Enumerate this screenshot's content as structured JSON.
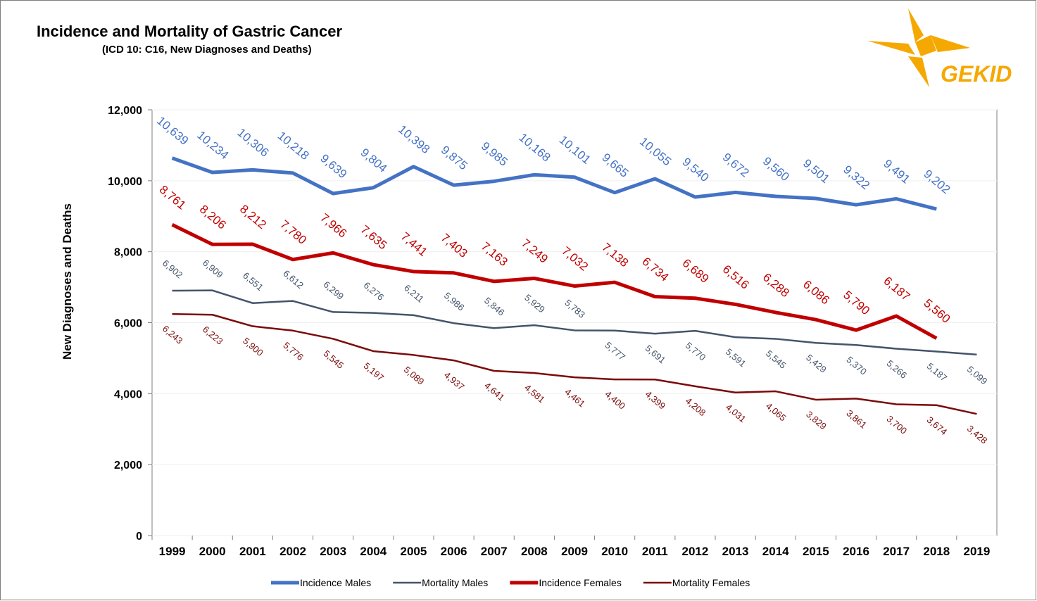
{
  "logo": "GEKID",
  "chart_data": {
    "type": "line",
    "title": "Incidence and Mortality of Gastric Cancer",
    "subtitle": "(ICD 10: C16, New Diagnoses and Deaths)",
    "y_label": "New Diagnoses and Deaths",
    "categories": [
      "1999",
      "2000",
      "2001",
      "2002",
      "2003",
      "2004",
      "2005",
      "2006",
      "2007",
      "2008",
      "2009",
      "2010",
      "2011",
      "2012",
      "2013",
      "2014",
      "2015",
      "2016",
      "2017",
      "2018",
      "2019"
    ],
    "ylim": [
      0,
      12000
    ],
    "yticks": [
      0,
      {
        "value": 2000,
        "label": "2,000"
      },
      {
        "value": 4000,
        "label": "4,000"
      },
      {
        "value": 6000,
        "label": "6,000"
      },
      {
        "value": 8000,
        "label": "8,000"
      },
      {
        "value": 10000,
        "label": "10,000"
      },
      {
        "value": 12000,
        "label": "12,000"
      }
    ],
    "grid": true,
    "legend": "bottom",
    "series": [
      {
        "name": "Incidence Males",
        "color": "#4472c4",
        "values": [
          10639,
          10234,
          10306,
          10218,
          9639,
          9804,
          10398,
          9875,
          9985,
          10168,
          10101,
          9665,
          10055,
          9540,
          9672,
          9560,
          9501,
          9322,
          9491,
          9202,
          null
        ],
        "value_labels": [
          "10,639",
          "10,234",
          "10,306",
          "10,218",
          "9,639",
          "9,804",
          "10,398",
          "9,875",
          "9,985",
          "10,168",
          "10,101",
          "9,665",
          "10,055",
          "9,540",
          "9,672",
          "9,560",
          "9,501",
          "9,322",
          "9,491",
          "9,202",
          null
        ]
      },
      {
        "name": "Mortality Males",
        "color": "#44546a",
        "values": [
          6902,
          6909,
          6551,
          6612,
          6299,
          6276,
          6211,
          5986,
          5846,
          5929,
          5783,
          5777,
          5691,
          5770,
          5591,
          5545,
          5429,
          5370,
          5266,
          5187,
          5099
        ],
        "value_labels": [
          "6,902",
          "6,909",
          "6,551",
          "6,612",
          "6,299",
          "6,276",
          "6,211",
          "5,986",
          "5,846",
          "5,929",
          "5,783",
          "5,777",
          "5,691",
          "5,770",
          "5,591",
          "5,545",
          "5,429",
          "5,370",
          "5,266",
          "5,187",
          "5,099"
        ]
      },
      {
        "name": "Incidence Females",
        "color": "#c00000",
        "values": [
          8761,
          8206,
          8212,
          7780,
          7966,
          7635,
          7441,
          7403,
          7163,
          7249,
          7032,
          7138,
          6734,
          6689,
          6516,
          6288,
          6086,
          5790,
          6187,
          5560,
          null
        ],
        "value_labels": [
          "8,761",
          "8,206",
          "8,212",
          "7,780",
          "7,966",
          "7,635",
          "7,441",
          "7,403",
          "7,163",
          "7,249",
          "7,032",
          "7,138",
          "6,734",
          "6,689",
          "6,516",
          "6,288",
          "6,086",
          "5,790",
          "6,187",
          "5,560",
          null
        ]
      },
      {
        "name": "Mortality Females",
        "color": "#7b0a0a",
        "values": [
          6243,
          6223,
          5900,
          5776,
          5545,
          5197,
          5089,
          4937,
          4641,
          4581,
          4461,
          4400,
          4399,
          4208,
          4031,
          4065,
          3829,
          3861,
          3700,
          3674,
          3428
        ],
        "value_labels": [
          "6,243",
          "6,223",
          "5,900",
          "5,776",
          "5,545",
          "5,197",
          "5,089",
          "4,937",
          "4,641",
          "4,581",
          "4,461",
          "4,400",
          "4,399",
          "4,208",
          "4,031",
          "4,065",
          "3,829",
          "3,861",
          "3,700",
          "3,674",
          "3,428"
        ]
      }
    ]
  }
}
